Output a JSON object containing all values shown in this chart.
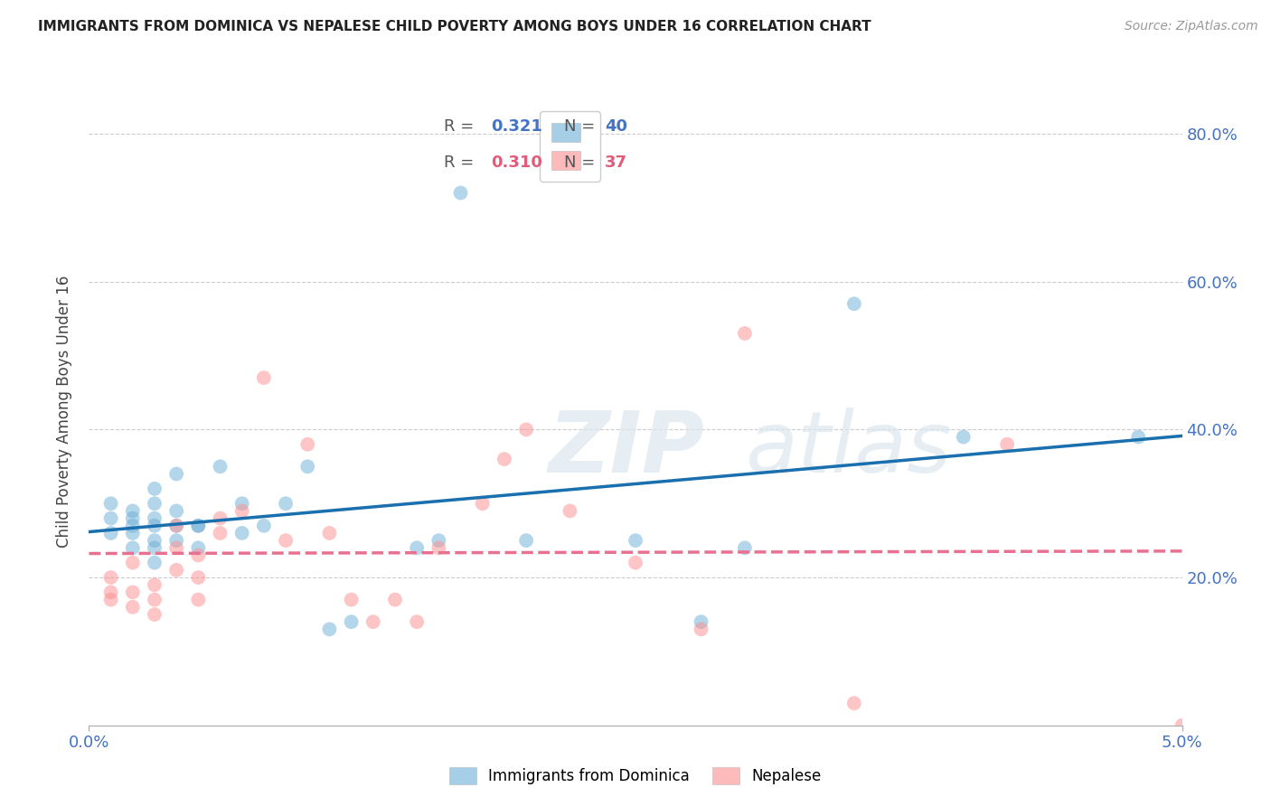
{
  "title": "IMMIGRANTS FROM DOMINICA VS NEPALESE CHILD POVERTY AMONG BOYS UNDER 16 CORRELATION CHART",
  "source": "Source: ZipAtlas.com",
  "ylabel": "Child Poverty Among Boys Under 16",
  "xlim": [
    0.0,
    0.05
  ],
  "ylim": [
    0.0,
    0.85
  ],
  "yticks": [
    0.2,
    0.4,
    0.6,
    0.8
  ],
  "ytick_labels": [
    "20.0%",
    "40.0%",
    "60.0%",
    "80.0%"
  ],
  "xticks": [
    0.0,
    0.05
  ],
  "xtick_labels": [
    "0.0%",
    "5.0%"
  ],
  "grid_color": "#cccccc",
  "background_color": "#ffffff",
  "series1_color": "#6baed6",
  "series2_color": "#fc8d8d",
  "line1_color": "#1a6faf",
  "line2_color": "#e87090",
  "series1_label": "Immigrants from Dominica",
  "series2_label": "Nepalese",
  "series1_R": "0.321",
  "series1_N": "40",
  "series2_R": "0.310",
  "series2_N": "37",
  "series1_x": [
    0.001,
    0.001,
    0.001,
    0.002,
    0.002,
    0.002,
    0.002,
    0.002,
    0.003,
    0.003,
    0.003,
    0.003,
    0.003,
    0.003,
    0.003,
    0.004,
    0.004,
    0.004,
    0.004,
    0.005,
    0.005,
    0.005,
    0.006,
    0.007,
    0.007,
    0.008,
    0.009,
    0.01,
    0.011,
    0.012,
    0.015,
    0.016,
    0.017,
    0.02,
    0.025,
    0.028,
    0.03,
    0.035,
    0.04,
    0.048
  ],
  "series1_y": [
    0.26,
    0.28,
    0.3,
    0.24,
    0.26,
    0.27,
    0.28,
    0.29,
    0.22,
    0.24,
    0.25,
    0.27,
    0.28,
    0.3,
    0.32,
    0.25,
    0.27,
    0.29,
    0.34,
    0.24,
    0.27,
    0.27,
    0.35,
    0.26,
    0.3,
    0.27,
    0.3,
    0.35,
    0.13,
    0.14,
    0.24,
    0.25,
    0.72,
    0.25,
    0.25,
    0.14,
    0.24,
    0.57,
    0.39,
    0.39
  ],
  "series2_x": [
    0.001,
    0.001,
    0.001,
    0.002,
    0.002,
    0.002,
    0.003,
    0.003,
    0.003,
    0.004,
    0.004,
    0.004,
    0.005,
    0.005,
    0.005,
    0.006,
    0.006,
    0.007,
    0.008,
    0.009,
    0.01,
    0.011,
    0.012,
    0.013,
    0.014,
    0.015,
    0.016,
    0.018,
    0.019,
    0.02,
    0.022,
    0.025,
    0.028,
    0.03,
    0.035,
    0.042,
    0.05
  ],
  "series2_y": [
    0.17,
    0.18,
    0.2,
    0.16,
    0.18,
    0.22,
    0.15,
    0.17,
    0.19,
    0.21,
    0.24,
    0.27,
    0.17,
    0.2,
    0.23,
    0.26,
    0.28,
    0.29,
    0.47,
    0.25,
    0.38,
    0.26,
    0.17,
    0.14,
    0.17,
    0.14,
    0.24,
    0.3,
    0.36,
    0.4,
    0.29,
    0.22,
    0.13,
    0.53,
    0.03,
    0.38,
    0.0
  ]
}
